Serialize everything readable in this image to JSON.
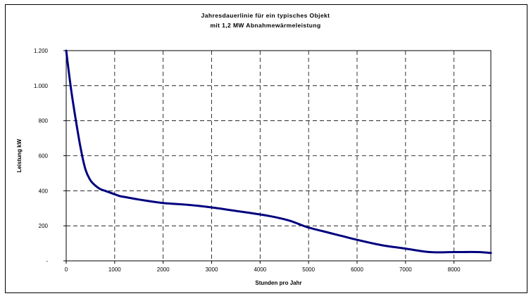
{
  "chart_data": {
    "type": "line",
    "title": "Jahresdauerlinie für ein typisches Objekt",
    "subtitle": "mit 1,2 MW Abnahmewärmeleistung",
    "xlabel": "Stunden pro Jahr",
    "ylabel": "Leistung kW",
    "xlim": [
      0,
      8760
    ],
    "ylim": [
      0,
      1200
    ],
    "x_ticks": [
      0,
      1000,
      2000,
      3000,
      4000,
      5000,
      6000,
      7000,
      8000
    ],
    "x_tick_labels": [
      "0",
      "1000",
      "2000",
      "3000",
      "4000",
      "5000",
      "6000",
      "7000",
      "8000"
    ],
    "y_ticks": [
      0,
      200,
      400,
      600,
      800,
      1000,
      1200
    ],
    "y_tick_labels": [
      "-",
      "200",
      "400",
      "600",
      "800",
      "1.000",
      "1.200"
    ],
    "grid": true,
    "line_color": "#00007f",
    "series": [
      {
        "x": [
          0,
          100,
          200,
          300,
          400,
          500,
          600,
          700,
          800,
          900,
          1000,
          1100,
          1200,
          1500,
          2000,
          2500,
          3000,
          3500,
          4000,
          4300,
          4600,
          4800,
          5000,
          5500,
          6000,
          6500,
          7000,
          7500,
          8000,
          8500,
          8760
        ],
        "y": [
          1200,
          980,
          800,
          640,
          520,
          460,
          430,
          410,
          400,
          390,
          380,
          370,
          365,
          350,
          330,
          320,
          305,
          285,
          265,
          250,
          230,
          210,
          190,
          155,
          120,
          90,
          70,
          50,
          50,
          50,
          45
        ]
      }
    ]
  }
}
